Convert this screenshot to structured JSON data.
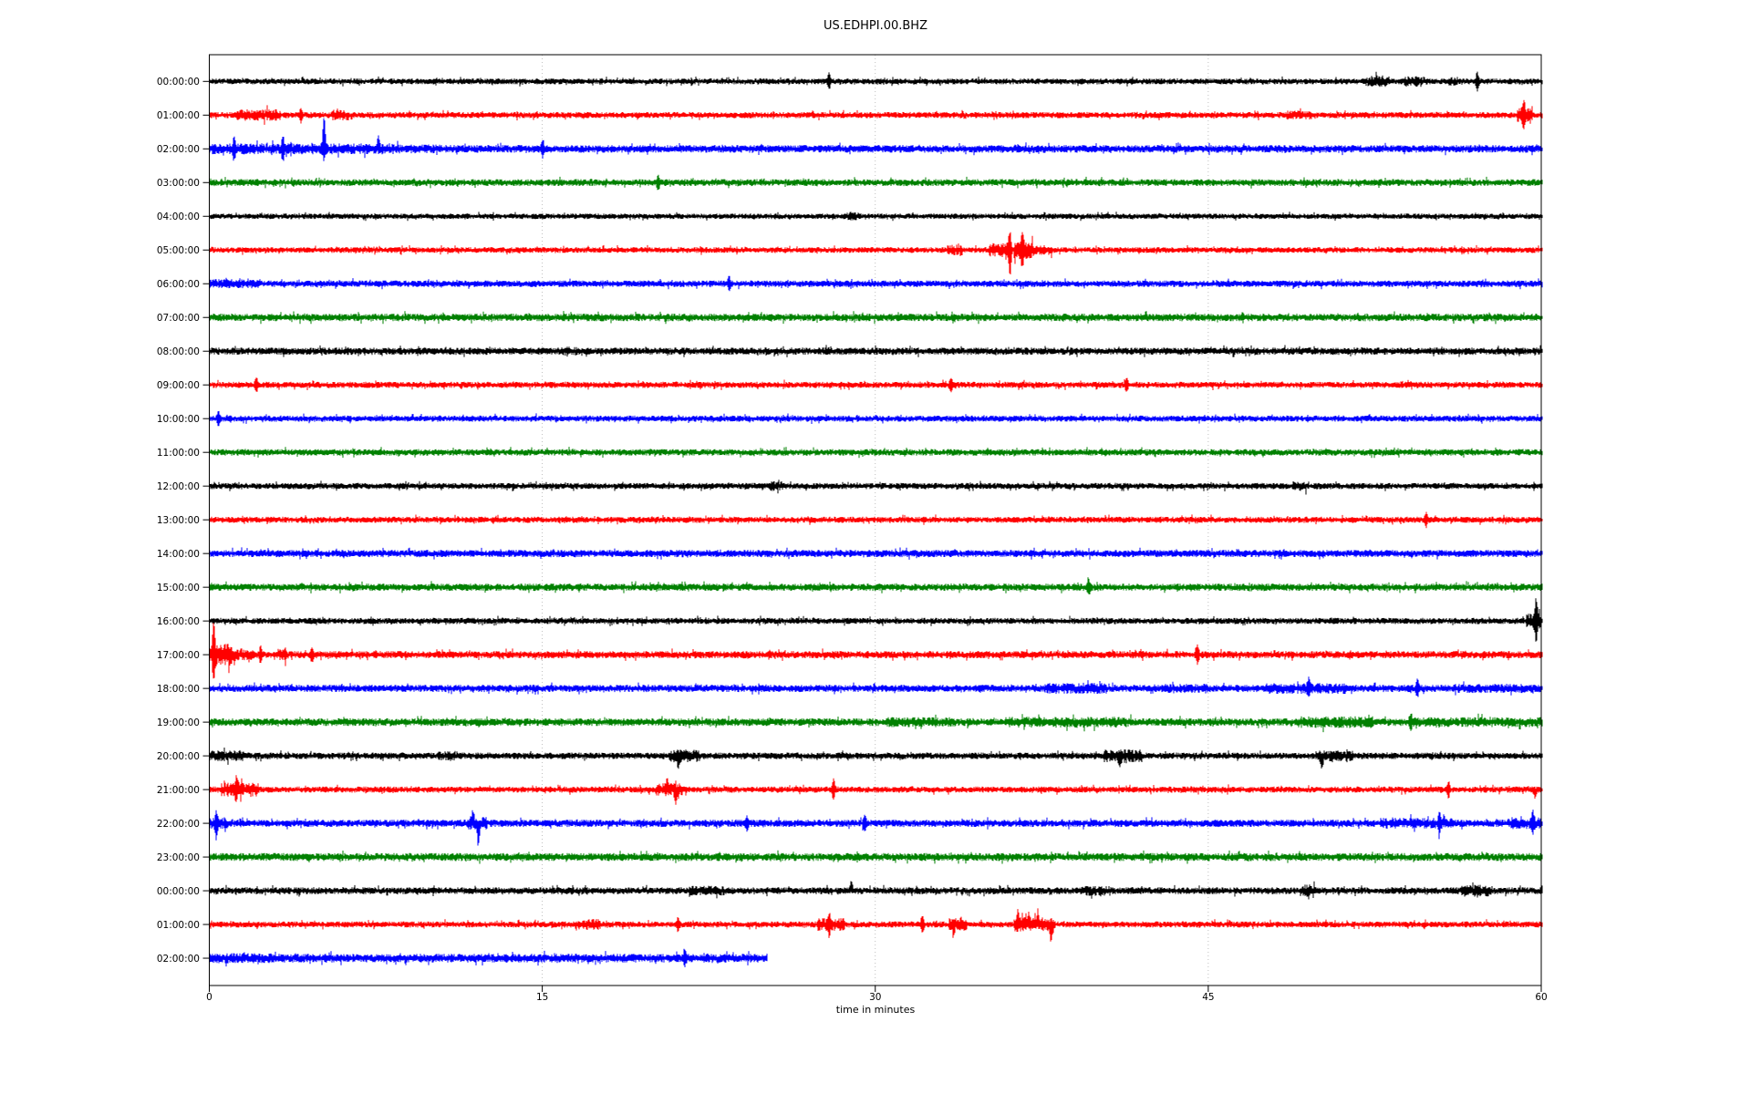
{
  "chart_data": {
    "type": "line",
    "subtype": "seismogram_helicorder_dayplot",
    "title": "US.EDHPI.00.BHZ",
    "xlabel": "time in minutes",
    "x_range_minutes": [
      0,
      60
    ],
    "x_ticks": [
      0,
      15,
      30,
      45,
      60
    ],
    "grid_minutes": [
      15,
      30,
      45
    ],
    "grid_style": "dotted-vertical",
    "legend_position": "none",
    "minutes_per_line": 60,
    "row_interval": "1 hour per line, consecutive hours top to bottom",
    "palette": {
      "black": "#000000",
      "red": "#ff0000",
      "blue": "#0000ff",
      "green": "#008000"
    },
    "color_cycle": [
      "black",
      "red",
      "blue",
      "green"
    ],
    "rows": [
      {
        "label": "00:00:00",
        "color": "black",
        "duration_min": 60,
        "base_amp": 3.2,
        "events": [
          {
            "type": "spike",
            "t": 27.9,
            "amp": 7
          },
          {
            "type": "band",
            "start": 52.2,
            "end": 53.2,
            "amp": 6.5
          },
          {
            "type": "band",
            "start": 53.8,
            "end": 54.6,
            "amp": 6
          },
          {
            "type": "band",
            "start": 55.8,
            "end": 56.2,
            "amp": 5
          },
          {
            "type": "spike",
            "t": 57.1,
            "amp": 8
          }
        ]
      },
      {
        "label": "01:00:00",
        "color": "red",
        "duration_min": 60,
        "base_amp": 3.4,
        "events": [
          {
            "type": "band",
            "start": 1.2,
            "end": 3.2,
            "amp": 6.5
          },
          {
            "type": "spike",
            "t": 4.1,
            "amp": 6
          },
          {
            "type": "band",
            "start": 5.5,
            "end": 6.3,
            "amp": 6
          },
          {
            "type": "band",
            "start": 48.5,
            "end": 49.8,
            "amp": 5
          },
          {
            "type": "band",
            "start": 58.9,
            "end": 59.6,
            "amp": 8
          },
          {
            "type": "spike",
            "t": 59.2,
            "amp": 10
          }
        ]
      },
      {
        "label": "02:00:00",
        "color": "blue",
        "duration_min": 60,
        "base_amp": 4.2,
        "events": [
          {
            "type": "band",
            "start": 0,
            "end": 8.5,
            "amp": 6
          },
          {
            "type": "spike",
            "t": 1.1,
            "amp": 9
          },
          {
            "type": "spike",
            "t": 3.3,
            "amp": 10
          },
          {
            "type": "spike",
            "t": 5.15,
            "amp": 32,
            "dir": "up"
          },
          {
            "type": "spike",
            "t": 5.15,
            "amp": 9,
            "dir": "down"
          },
          {
            "type": "spike",
            "t": 7.6,
            "amp": 11,
            "dir": "up"
          },
          {
            "type": "band",
            "start": 8.5,
            "end": 10.5,
            "amp": 5
          },
          {
            "type": "spike",
            "t": 15.0,
            "amp": 7
          }
        ]
      },
      {
        "label": "03:00:00",
        "color": "green",
        "duration_min": 60,
        "base_amp": 3.8,
        "events": [
          {
            "type": "spike",
            "t": 20.2,
            "amp": 6
          }
        ]
      },
      {
        "label": "04:00:00",
        "color": "black",
        "duration_min": 60,
        "base_amp": 3.0,
        "events": [
          {
            "type": "band",
            "start": 28.7,
            "end": 29.3,
            "amp": 5
          }
        ]
      },
      {
        "label": "05:00:00",
        "color": "red",
        "duration_min": 60,
        "base_amp": 3.2,
        "events": [
          {
            "type": "band",
            "start": 33.2,
            "end": 33.9,
            "amp": 6
          },
          {
            "type": "band",
            "start": 35.1,
            "end": 36.0,
            "amp": 8
          },
          {
            "type": "spike",
            "t": 36.05,
            "amp": 18,
            "dir": "up"
          },
          {
            "type": "spike",
            "t": 36.05,
            "amp": 26,
            "dir": "down"
          },
          {
            "type": "band",
            "start": 36.2,
            "end": 37.1,
            "amp": 10
          },
          {
            "type": "spike",
            "t": 36.6,
            "amp": 13
          },
          {
            "type": "band",
            "start": 37.1,
            "end": 38.0,
            "amp": 5.5
          }
        ]
      },
      {
        "label": "06:00:00",
        "color": "blue",
        "duration_min": 60,
        "base_amp": 3.6,
        "events": [
          {
            "type": "band",
            "start": 0,
            "end": 2.3,
            "amp": 5
          },
          {
            "type": "spike",
            "t": 23.4,
            "amp": 6
          }
        ]
      },
      {
        "label": "07:00:00",
        "color": "green",
        "duration_min": 60,
        "base_amp": 4.2,
        "events": []
      },
      {
        "label": "08:00:00",
        "color": "black",
        "duration_min": 60,
        "base_amp": 4.0,
        "events": [
          {
            "type": "band",
            "start": 15.8,
            "end": 16.6,
            "amp": 5
          }
        ]
      },
      {
        "label": "09:00:00",
        "color": "red",
        "duration_min": 60,
        "base_amp": 3.4,
        "events": [
          {
            "type": "spike",
            "t": 2.1,
            "amp": 6
          },
          {
            "type": "spike",
            "t": 33.4,
            "amp": 6
          },
          {
            "type": "spike",
            "t": 41.3,
            "amp": 6
          }
        ]
      },
      {
        "label": "10:00:00",
        "color": "blue",
        "duration_min": 60,
        "base_amp": 3.4,
        "events": [
          {
            "type": "spike",
            "t": 0.4,
            "amp": 6
          }
        ]
      },
      {
        "label": "11:00:00",
        "color": "green",
        "duration_min": 60,
        "base_amp": 3.6,
        "events": []
      },
      {
        "label": "12:00:00",
        "color": "black",
        "duration_min": 60,
        "base_amp": 3.4,
        "events": [
          {
            "type": "band",
            "start": 25.2,
            "end": 25.8,
            "amp": 5.5
          },
          {
            "type": "band",
            "start": 48.8,
            "end": 49.4,
            "amp": 5.5
          }
        ]
      },
      {
        "label": "13:00:00",
        "color": "red",
        "duration_min": 60,
        "base_amp": 3.4,
        "events": [
          {
            "type": "spike",
            "t": 54.8,
            "amp": 6
          }
        ]
      },
      {
        "label": "14:00:00",
        "color": "blue",
        "duration_min": 60,
        "base_amp": 4.0,
        "events": []
      },
      {
        "label": "15:00:00",
        "color": "green",
        "duration_min": 60,
        "base_amp": 4.0,
        "events": [
          {
            "type": "spike",
            "t": 39.6,
            "amp": 6
          }
        ]
      },
      {
        "label": "16:00:00",
        "color": "black",
        "duration_min": 60,
        "base_amp": 3.4,
        "events": [
          {
            "type": "band",
            "start": 59.3,
            "end": 60,
            "amp": 9
          },
          {
            "type": "spike",
            "t": 59.75,
            "amp": 18
          }
        ]
      },
      {
        "label": "17:00:00",
        "color": "red",
        "duration_min": 60,
        "base_amp": 4.0,
        "events": [
          {
            "type": "spike",
            "t": 0.18,
            "amp": 26,
            "dir": "up"
          },
          {
            "type": "spike",
            "t": 0.18,
            "amp": 20,
            "dir": "down"
          },
          {
            "type": "band",
            "start": 0,
            "end": 1.0,
            "amp": 12
          },
          {
            "type": "band",
            "start": 1.0,
            "end": 2.0,
            "amp": 7
          },
          {
            "type": "spike",
            "t": 2.3,
            "amp": 7
          },
          {
            "type": "band",
            "start": 3.1,
            "end": 3.5,
            "amp": 8
          },
          {
            "type": "spike",
            "t": 4.6,
            "amp": 6
          },
          {
            "type": "spike",
            "t": 44.5,
            "amp": 8
          }
        ]
      },
      {
        "label": "18:00:00",
        "color": "blue",
        "duration_min": 60,
        "base_amp": 4.0,
        "events": [
          {
            "type": "band",
            "start": 37.6,
            "end": 40.4,
            "amp": 6
          },
          {
            "type": "band",
            "start": 43,
            "end": 45,
            "amp": 5
          },
          {
            "type": "band",
            "start": 47.6,
            "end": 51.2,
            "amp": 6
          },
          {
            "type": "spike",
            "t": 49.5,
            "amp": 7
          },
          {
            "type": "spike",
            "t": 54.4,
            "amp": 7
          },
          {
            "type": "band",
            "start": 56,
            "end": 60,
            "amp": 5
          }
        ]
      },
      {
        "label": "19:00:00",
        "color": "green",
        "duration_min": 60,
        "base_amp": 4.2,
        "events": [
          {
            "type": "band",
            "start": 30.5,
            "end": 33.5,
            "amp": 5.5
          },
          {
            "type": "band",
            "start": 36,
            "end": 41.5,
            "amp": 6
          },
          {
            "type": "band",
            "start": 49,
            "end": 52.5,
            "amp": 6.5
          },
          {
            "type": "spike",
            "t": 54.1,
            "amp": 7
          },
          {
            "type": "band",
            "start": 54,
            "end": 60,
            "amp": 5.5
          }
        ]
      },
      {
        "label": "20:00:00",
        "color": "black",
        "duration_min": 60,
        "base_amp": 3.6,
        "events": [
          {
            "type": "band",
            "start": 0,
            "end": 1.6,
            "amp": 6
          },
          {
            "type": "band",
            "start": 10.3,
            "end": 11.2,
            "amp": 5
          },
          {
            "type": "band",
            "start": 20.7,
            "end": 22.1,
            "amp": 7
          },
          {
            "type": "spike",
            "t": 21.1,
            "amp": 8,
            "dir": "down"
          },
          {
            "type": "band",
            "start": 40.3,
            "end": 42,
            "amp": 7
          },
          {
            "type": "spike",
            "t": 41.0,
            "amp": 8,
            "dir": "down"
          },
          {
            "type": "band",
            "start": 49.8,
            "end": 51.5,
            "amp": 6
          },
          {
            "type": "spike",
            "t": 50.1,
            "amp": 10,
            "dir": "down"
          }
        ]
      },
      {
        "label": "21:00:00",
        "color": "red",
        "duration_min": 60,
        "base_amp": 3.4,
        "events": [
          {
            "type": "band",
            "start": 0.5,
            "end": 2.2,
            "amp": 8
          },
          {
            "type": "spike",
            "t": 1.2,
            "amp": 9
          },
          {
            "type": "band",
            "start": 20.1,
            "end": 21.5,
            "amp": 7
          },
          {
            "type": "spike",
            "t": 20.6,
            "amp": 8,
            "dir": "up"
          },
          {
            "type": "spike",
            "t": 21.0,
            "amp": 11,
            "dir": "down"
          },
          {
            "type": "spike",
            "t": 28.1,
            "amp": 9
          },
          {
            "type": "spike",
            "t": 55.8,
            "amp": 7
          },
          {
            "type": "spike",
            "t": 59.7,
            "amp": 7,
            "dir": "down"
          }
        ]
      },
      {
        "label": "22:00:00",
        "color": "blue",
        "duration_min": 60,
        "base_amp": 4.0,
        "events": [
          {
            "type": "band",
            "start": 0,
            "end": 1,
            "amp": 6
          },
          {
            "type": "spike",
            "t": 0.3,
            "amp": 9
          },
          {
            "type": "band",
            "start": 11.6,
            "end": 12.5,
            "amp": 7
          },
          {
            "type": "spike",
            "t": 11.85,
            "amp": 10,
            "dir": "up"
          },
          {
            "type": "spike",
            "t": 12.1,
            "amp": 20,
            "dir": "down"
          },
          {
            "type": "spike",
            "t": 24.2,
            "amp": 6
          },
          {
            "type": "spike",
            "t": 29.5,
            "amp": 7
          },
          {
            "type": "band",
            "start": 52.8,
            "end": 56,
            "amp": 6
          },
          {
            "type": "spike",
            "t": 55.4,
            "amp": 8
          },
          {
            "type": "band",
            "start": 58.5,
            "end": 60,
            "amp": 6.5
          },
          {
            "type": "spike",
            "t": 59.6,
            "amp": 9
          }
        ]
      },
      {
        "label": "23:00:00",
        "color": "green",
        "duration_min": 60,
        "base_amp": 4.4,
        "events": []
      },
      {
        "label": "00:00:00",
        "color": "black",
        "duration_min": 60,
        "base_amp": 3.8,
        "events": [
          {
            "type": "band",
            "start": 21.6,
            "end": 23.2,
            "amp": 5.5
          },
          {
            "type": "spike",
            "t": 28.9,
            "amp": 8,
            "dir": "up"
          },
          {
            "type": "band",
            "start": 39.3,
            "end": 40.6,
            "amp": 5.5
          },
          {
            "type": "band",
            "start": 49.1,
            "end": 49.8,
            "amp": 7
          },
          {
            "type": "band",
            "start": 56.4,
            "end": 57.8,
            "amp": 6.5
          }
        ]
      },
      {
        "label": "01:00:00",
        "color": "red",
        "duration_min": 60,
        "base_amp": 3.4,
        "events": [
          {
            "type": "band",
            "start": 16.4,
            "end": 17.6,
            "amp": 6
          },
          {
            "type": "spike",
            "t": 21.1,
            "amp": 6
          },
          {
            "type": "band",
            "start": 27.4,
            "end": 28.6,
            "amp": 7
          },
          {
            "type": "spike",
            "t": 27.9,
            "amp": 8
          },
          {
            "type": "spike",
            "t": 32.1,
            "amp": 8
          },
          {
            "type": "band",
            "start": 33.3,
            "end": 34.1,
            "amp": 7
          },
          {
            "type": "spike",
            "t": 33.5,
            "amp": 7,
            "dir": "down"
          },
          {
            "type": "band",
            "start": 36.2,
            "end": 38.1,
            "amp": 8
          },
          {
            "type": "spike",
            "t": 36.4,
            "amp": 11,
            "dir": "up"
          },
          {
            "type": "spike",
            "t": 36.9,
            "amp": 9,
            "dir": "up"
          },
          {
            "type": "spike",
            "t": 37.3,
            "amp": 10,
            "dir": "up"
          },
          {
            "type": "spike",
            "t": 37.9,
            "amp": 14,
            "dir": "down"
          }
        ]
      },
      {
        "label": "02:00:00",
        "color": "blue",
        "duration_min": 25.1,
        "base_amp": 4.8,
        "events": [
          {
            "type": "band",
            "start": 0,
            "end": 3,
            "amp": 5.5
          },
          {
            "type": "spike",
            "t": 21.4,
            "amp": 6
          }
        ]
      }
    ]
  }
}
